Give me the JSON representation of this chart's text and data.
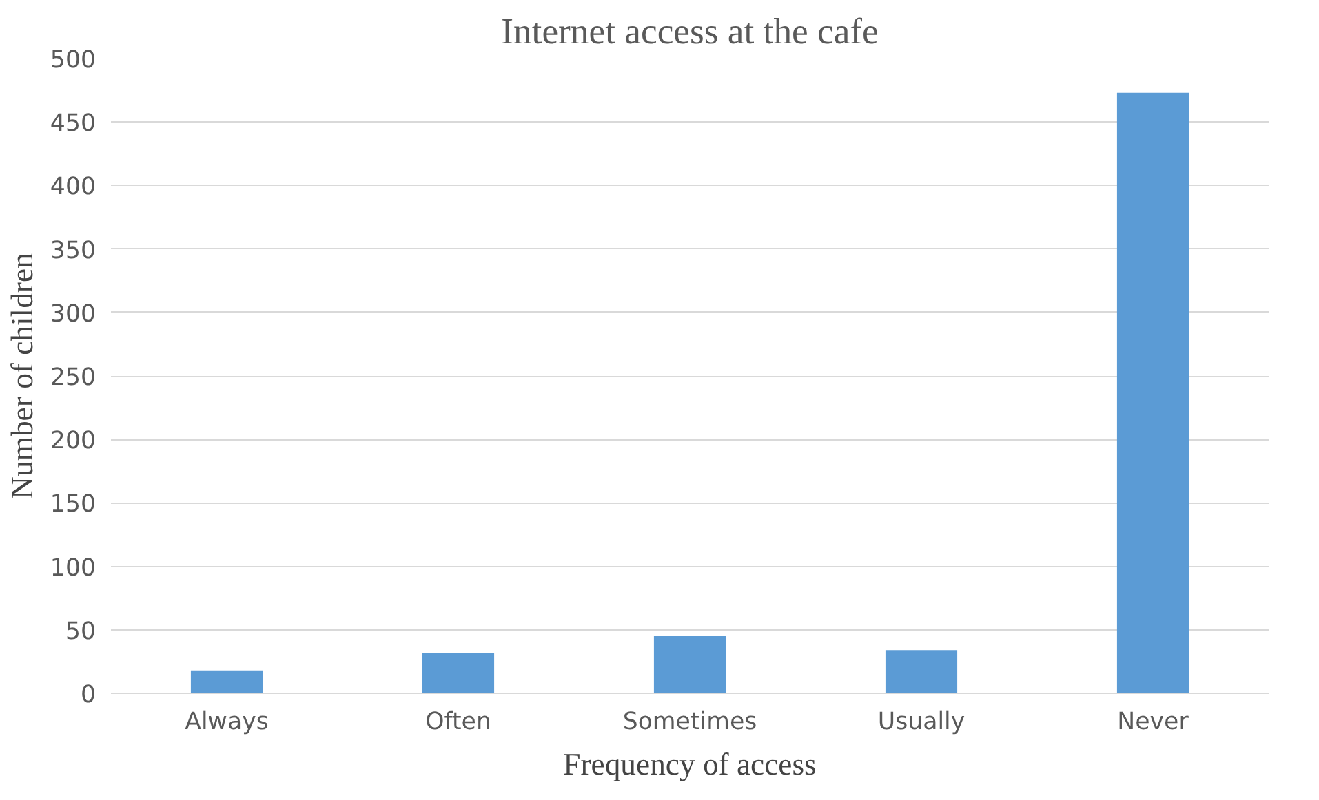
{
  "chart_data": {
    "type": "bar",
    "title": "Internet access at the cafe",
    "xlabel": "Frequency of access",
    "ylabel": "Number of children",
    "categories": [
      "Always",
      "Often",
      "Sometimes",
      "Usually",
      "Never"
    ],
    "values": [
      18,
      32,
      45,
      34,
      473
    ],
    "color": "#5b9bd5",
    "ylim": [
      0,
      500
    ],
    "yticks": [
      0,
      50,
      100,
      150,
      200,
      250,
      300,
      350,
      400,
      450,
      500
    ],
    "grid": "y"
  }
}
